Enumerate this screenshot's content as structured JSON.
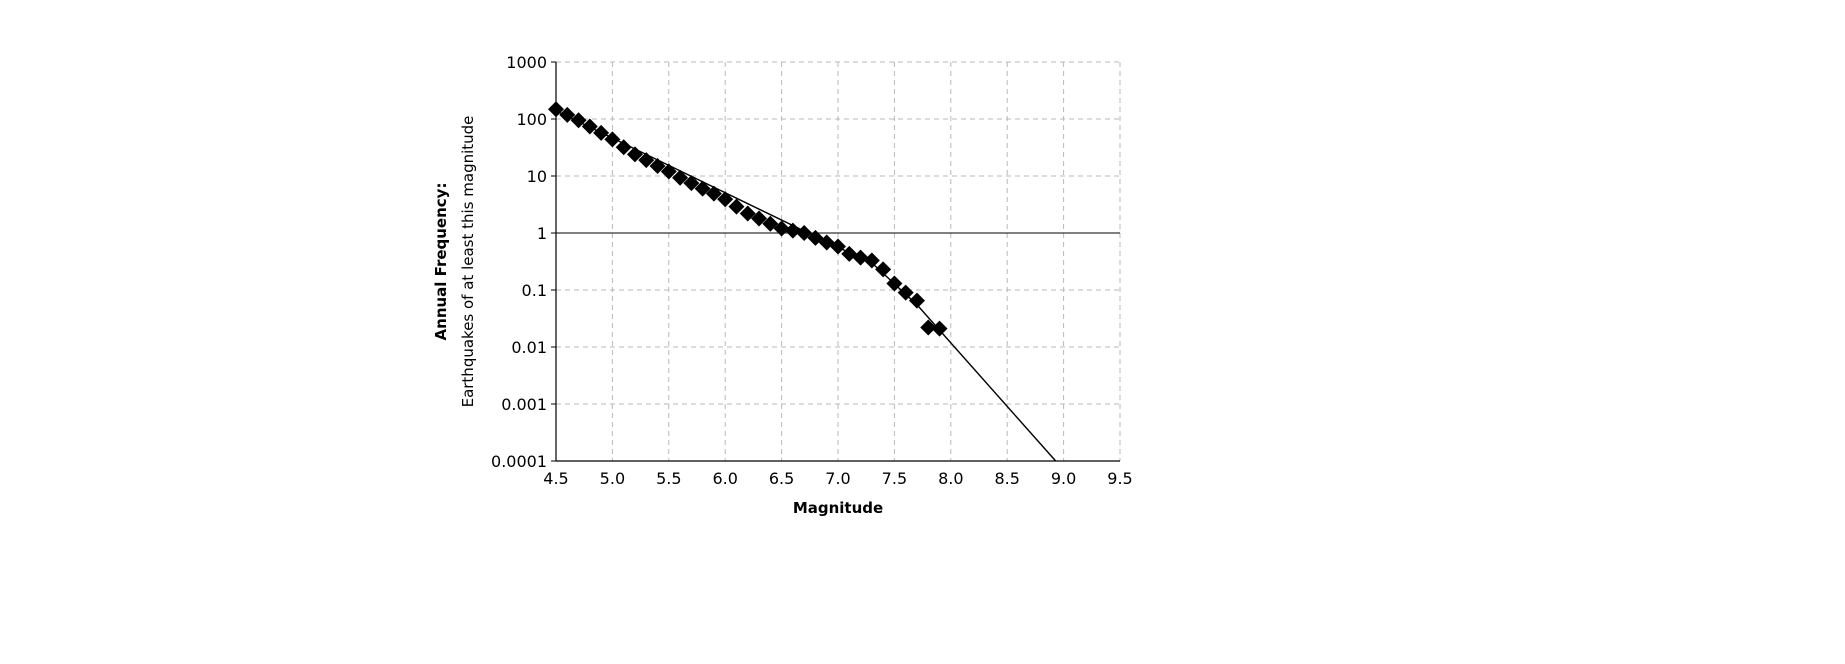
{
  "chart_data": {
    "type": "scatter",
    "title": "",
    "xlabel": "Magnitude",
    "ylabel": "Annual Frequency:",
    "ylabel_sub": "Earthquakes of at least this magnitude",
    "x_scale": "linear",
    "y_scale": "log",
    "xlim": [
      4.5,
      9.5
    ],
    "ylim": [
      0.0001,
      1000
    ],
    "x_ticks": [
      "4.5",
      "5.0",
      "5.5",
      "6.0",
      "6.5",
      "7.0",
      "7.5",
      "8.0",
      "8.5",
      "9.0",
      "9.5"
    ],
    "y_ticks": [
      "0.0001",
      "0.001",
      "0.01",
      "0.1",
      "1",
      "10",
      "100",
      "1000"
    ],
    "grid": true,
    "legend": "none",
    "series": [
      {
        "marker": "diamond",
        "color": "#000000",
        "x": [
          4.5,
          4.6,
          4.7,
          4.8,
          4.9,
          5.0,
          5.1,
          5.2,
          5.3,
          5.4,
          5.5,
          5.6,
          5.7,
          5.8,
          5.9,
          6.0,
          6.1,
          6.2,
          6.3,
          6.4,
          6.5,
          6.6,
          6.7,
          6.8,
          6.9,
          7.0,
          7.1,
          7.2,
          7.3,
          7.4,
          7.5,
          7.6,
          7.7,
          7.8,
          7.9
        ],
        "y": [
          148,
          118,
          95,
          74,
          57,
          44,
          32,
          24,
          19,
          15,
          12,
          9.3,
          7.5,
          6.0,
          4.9,
          3.9,
          2.9,
          2.2,
          1.8,
          1.45,
          1.2,
          1.1,
          1.0,
          0.82,
          0.68,
          0.58,
          0.43,
          0.37,
          0.33,
          0.23,
          0.13,
          0.09,
          0.065,
          0.022,
          0.021
        ]
      }
    ],
    "trendline": {
      "color": "#000000",
      "x": [
        4.5,
        7.0,
        7.3,
        7.7,
        8.93
      ],
      "y": [
        140,
        0.56,
        0.3,
        0.055,
        0.0001
      ]
    }
  }
}
